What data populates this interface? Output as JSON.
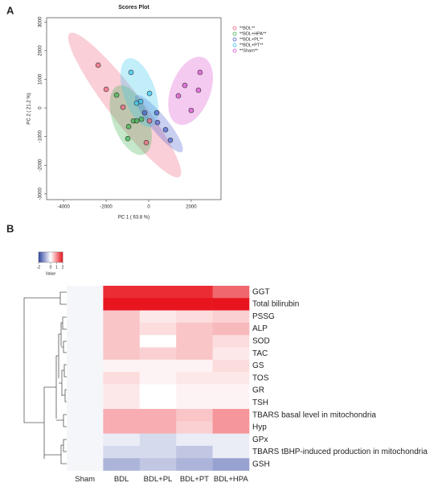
{
  "chart_data": [
    {
      "type": "scatter",
      "label": "A",
      "title": "Scores Plot",
      "x_label": "PC 1 ( 63.8 %)",
      "y_label": "PC 2 ( 21.2 %)",
      "xlim": [
        -4800,
        3400
      ],
      "ylim": [
        -3200,
        3150
      ],
      "xticks": [
        -4000,
        -2000,
        0,
        2000
      ],
      "yticks": [
        -3000,
        -2000,
        -1000,
        0,
        1000,
        2000,
        3000
      ],
      "legend": "top-right",
      "series": [
        {
          "name": "**BDL**",
          "color": "#f0607a",
          "x": [
            -2377,
            -2000,
            -1208,
            -113,
            38
          ],
          "values": [
            1493,
            650,
            28,
            -1211,
            -450
          ]
        },
        {
          "name": "**BDL+HPA**",
          "color": "#3cb44b",
          "x": [
            -1509,
            -943,
            -717,
            -566,
            -340,
            -981
          ],
          "values": [
            450,
            -648,
            -450,
            -450,
            -394,
            -1070
          ]
        },
        {
          "name": "**BDL+PL**",
          "color": "#4a5fcf",
          "x": [
            -189,
            377,
            415,
            792,
            1019
          ],
          "values": [
            -169,
            -169,
            -507,
            -760,
            -1127
          ]
        },
        {
          "name": "**BDL+PT**",
          "color": "#35c8f0",
          "x": [
            -830,
            38,
            -566,
            -377
          ],
          "values": [
            1240,
            507,
            169,
            225
          ]
        },
        {
          "name": "**Sham**",
          "color": "#d94fd0",
          "x": [
            2415,
            1698,
            2340,
            1396,
            2000
          ],
          "values": [
            1240,
            789,
            620,
            423,
            -85
          ]
        }
      ]
    },
    {
      "type": "heatmap",
      "label": "B",
      "columns": [
        "Sham",
        "BDL",
        "BDL+PL",
        "BDL+PT",
        "BDL+HPA"
      ],
      "rows": [
        "GGT",
        "Total bilirubin",
        "PSSG",
        "ALP",
        "SOD",
        "TAC",
        "GS",
        "TOS",
        "GR",
        "TSH",
        "TBARS basal level in mitochondria",
        "Hyp",
        "GPx",
        "TBARS tBHP-induced production in mitochondria",
        "GSH"
      ],
      "values": [
        [
          -0.1,
          1.8,
          1.8,
          1.8,
          1.3
        ],
        [
          -0.1,
          2,
          2,
          2,
          2
        ],
        [
          -0.1,
          0.5,
          0.2,
          0.3,
          0.4
        ],
        [
          -0.1,
          0.5,
          0.3,
          0.5,
          0.6
        ],
        [
          -0.1,
          0.5,
          0.0,
          0.5,
          0.3
        ],
        [
          -0.1,
          0.5,
          0.4,
          0.5,
          0.2
        ],
        [
          -0.1,
          0.1,
          0.1,
          0.1,
          0.3
        ],
        [
          -0.1,
          0.3,
          0.1,
          0.2,
          0.2
        ],
        [
          -0.1,
          0.2,
          0.0,
          0.1,
          0.1
        ],
        [
          -0.1,
          0.2,
          0.0,
          0.1,
          0.1
        ],
        [
          -0.1,
          0.7,
          0.7,
          0.5,
          0.9
        ],
        [
          -0.1,
          0.7,
          0.7,
          0.4,
          0.9
        ],
        [
          -0.1,
          -0.2,
          -0.4,
          -0.2,
          -0.2
        ],
        [
          -0.1,
          -0.4,
          -0.4,
          -0.6,
          -0.2
        ],
        [
          -0.1,
          -0.8,
          -0.6,
          -0.8,
          -1.0
        ]
      ],
      "colors": [
        "#2f45a0",
        "#ffffff",
        "#e8151f"
      ],
      "colorbar": {
        "lim": [
          -2,
          2
        ],
        "ticks": [
          -2,
          0,
          1,
          2
        ],
        "label": "Value"
      }
    }
  ]
}
